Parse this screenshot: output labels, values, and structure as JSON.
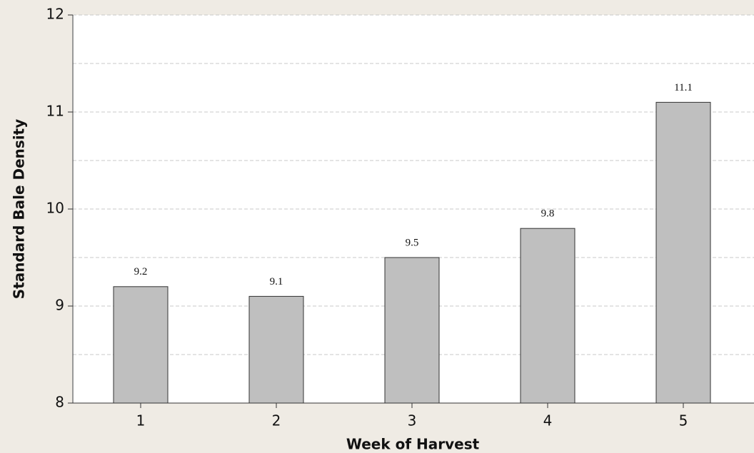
{
  "chart_data": {
    "type": "bar",
    "x_label": "Week of Harvest",
    "y_label": "Standard Bale Density",
    "categories": [
      "1",
      "2",
      "3",
      "4",
      "5"
    ],
    "values": [
      9.2,
      9.1,
      9.5,
      9.8,
      11.1
    ],
    "color": "#bfbfbf",
    "ylim": [
      8,
      12
    ],
    "yticks": [
      8,
      9,
      10,
      11,
      12
    ],
    "y_minor_ticks": [
      8.5,
      9.5,
      10.5,
      11.5
    ],
    "grid": true
  }
}
